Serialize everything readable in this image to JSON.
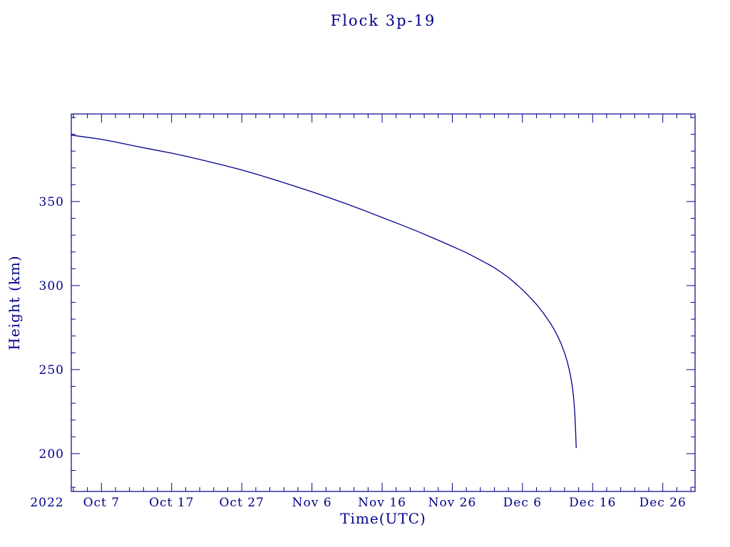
{
  "colors": {
    "ink": "#00008B",
    "background": "#ffffff",
    "curve": "#00008B"
  },
  "chart_data": {
    "type": "line",
    "title": "Flock 3p-19",
    "xlabel": "Time(UTC)",
    "ylabel": "Height (km)",
    "x_year_label": "2022",
    "x_unit": "days since 2022-10-01 UTC",
    "xlim": [
      1.7,
      90.6
    ],
    "ylim": [
      177.5,
      402.1
    ],
    "grid": false,
    "legend": "none",
    "x_major_ticks": [
      {
        "day": 6,
        "label": "Oct 7"
      },
      {
        "day": 16,
        "label": "Oct 17"
      },
      {
        "day": 26,
        "label": "Oct 27"
      },
      {
        "day": 36,
        "label": "Nov 6"
      },
      {
        "day": 46,
        "label": "Nov 16"
      },
      {
        "day": 56,
        "label": "Nov 26"
      },
      {
        "day": 66,
        "label": "Dec 6"
      },
      {
        "day": 76,
        "label": "Dec 16"
      },
      {
        "day": 86,
        "label": "Dec 26"
      }
    ],
    "x_minor_step": 2,
    "y_major_ticks": [
      200,
      250,
      300,
      350
    ],
    "y_minor_step": 10,
    "series": [
      {
        "name": "Flock 3p-19 orbital height",
        "x": [
          1.7,
          4,
          6,
          8,
          11,
          13.5,
          16,
          18.5,
          21,
          23.5,
          26,
          28.5,
          31,
          33.5,
          36,
          38.5,
          41,
          43.5,
          46,
          48.5,
          51,
          53.5,
          56,
          58,
          60,
          61,
          62,
          63,
          64,
          65,
          66,
          67,
          68,
          69,
          70,
          70.5,
          71,
          71.5,
          72,
          72.4,
          72.8,
          73.1,
          73.3,
          73.45,
          73.55,
          73.62,
          73.66
        ],
        "y": [
          389.5,
          388.2,
          387.0,
          385.4,
          382.8,
          380.8,
          378.8,
          376.5,
          374.0,
          371.5,
          368.8,
          365.8,
          362.5,
          359.2,
          355.8,
          352.2,
          348.5,
          344.6,
          340.5,
          336.5,
          332.3,
          327.9,
          323.3,
          319.6,
          315.2,
          313.0,
          310.6,
          307.8,
          304.8,
          301.3,
          297.5,
          293.3,
          288.8,
          283.5,
          277.5,
          274.0,
          270.0,
          265.5,
          260.0,
          254.5,
          247.5,
          240.0,
          233.0,
          225.0,
          216.0,
          208.0,
          203.5
        ]
      }
    ]
  }
}
